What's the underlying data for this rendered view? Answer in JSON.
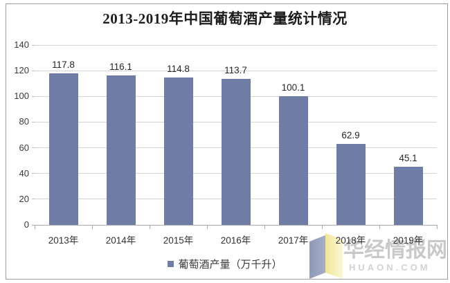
{
  "chart_data": {
    "type": "bar",
    "title": "2013-2019年中国葡萄酒产量统计情况",
    "categories": [
      "2013年",
      "2014年",
      "2015年",
      "2016年",
      "2017年",
      "2018年",
      "2019年"
    ],
    "values": [
      117.8,
      116.1,
      114.8,
      113.7,
      100.1,
      62.9,
      45.1
    ],
    "xlabel": "",
    "ylabel": "",
    "ylim": [
      0,
      140
    ],
    "yticks": [
      0,
      20,
      40,
      60,
      80,
      100,
      120,
      140
    ],
    "grid": true,
    "legend_label": "葡萄酒产量（万千升）",
    "legend_position": "bottom",
    "bar_color": "#6f7ca6"
  },
  "watermark": {
    "site_name": "华经情报网",
    "site_url": "HUAON.COM",
    "logo_left_color": "#99a3c0",
    "logo_right_color": "#f2e9a2"
  },
  "colors": {
    "bar": "#6f7ca6",
    "gridline": "#d5d5d5",
    "axis": "#a9a9a9",
    "title_text": "#1c1c1c",
    "label_text": "#3a3a3a",
    "watermark_text": "#c9c9c9",
    "frame_border": "#9c9c9c"
  }
}
